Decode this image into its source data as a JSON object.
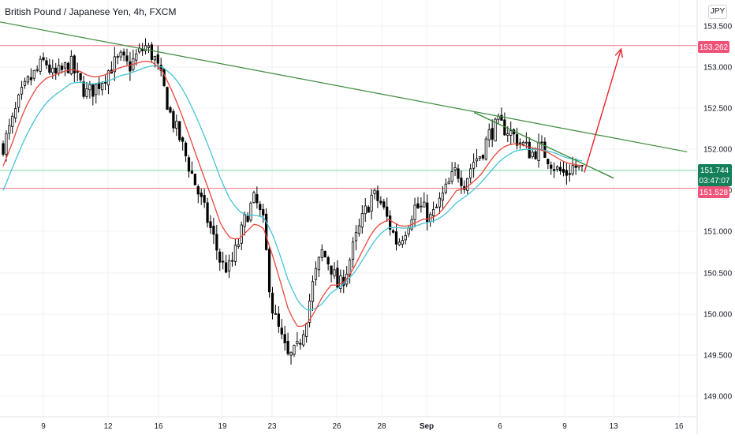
{
  "header": {
    "symbol_title": "British Pound / Japanese Yen, 4h, FXCM",
    "currency_button": "JPY"
  },
  "colors": {
    "up_candle_fill": "#ffffff",
    "down_candle_fill": "#000000",
    "candle_outline": "#000000",
    "ema_fast": "#e8473d",
    "ema_slow": "#45c3d4",
    "trendline": "#3c8c3c",
    "resistance_line": "#f07a8c",
    "current_price_line": "#7ed6a8",
    "projection_arrow": "#e8242b",
    "label_pink": "#f0537a",
    "label_green": "#13805a",
    "grid": "#eef0f3",
    "axis_text": "#131722"
  },
  "price_labels": {
    "resistance": "153.262",
    "current": "151.744",
    "countdown": "03:47:07",
    "support": "151.528"
  },
  "chart_data": {
    "type": "candlestick",
    "title": "British Pound / Japanese Yen, 4h, FXCM",
    "y_axis": {
      "ticks": [
        "153.500",
        "153.000",
        "152.500",
        "152.000",
        "151.500",
        "151.000",
        "150.500",
        "150.000",
        "149.500",
        "149.000"
      ],
      "range": [
        148.95,
        153.7
      ]
    },
    "x_axis": {
      "ticks": [
        "9",
        "12",
        "16",
        "19",
        "23",
        "26",
        "28",
        "Sep",
        "6",
        "9",
        "13",
        "16"
      ]
    },
    "close_path": [
      152.05,
      152.3,
      152.62,
      152.82,
      152.95,
      153.08,
      152.88,
      152.95,
      153.05,
      152.82,
      152.68,
      152.75,
      152.88,
      153.02,
      153.1,
      153.0,
      153.15,
      153.25,
      153.12,
      152.8,
      152.4,
      152.15,
      151.85,
      151.55,
      151.25,
      150.95,
      150.6,
      150.55,
      150.85,
      151.2,
      151.4,
      151.1,
      150.1,
      149.75,
      149.45,
      149.55,
      149.9,
      150.4,
      150.75,
      150.6,
      150.3,
      150.55,
      150.9,
      151.2,
      151.45,
      151.35,
      151.1,
      150.85,
      151.05,
      151.3,
      151.28,
      151.15,
      151.35,
      151.55,
      151.75,
      151.6,
      151.85,
      151.95,
      152.2,
      152.3,
      152.25,
      152.15,
      152.05,
      151.95,
      152.02,
      151.9,
      151.75,
      151.7,
      151.8,
      151.74
    ],
    "ema_fast": [
      151.8,
      152.05,
      152.35,
      152.58,
      152.75,
      152.86,
      152.9,
      152.94,
      152.97,
      152.96,
      152.9,
      152.88,
      152.9,
      152.95,
      153.0,
      153.02,
      153.05,
      153.08,
      153.05,
      152.95,
      152.74,
      152.5,
      152.22,
      151.93,
      151.65,
      151.37,
      151.07,
      150.93,
      150.9,
      151.0,
      151.1,
      151.05,
      150.75,
      150.41,
      150.05,
      149.85,
      149.85,
      150.0,
      150.2,
      150.35,
      150.35,
      150.42,
      150.6,
      150.8,
      151.0,
      151.1,
      151.15,
      151.08,
      151.06,
      151.1,
      151.15,
      151.16,
      151.22,
      151.35,
      151.5,
      151.52,
      151.6,
      151.7,
      151.85,
      151.98,
      152.05,
      152.07,
      152.05,
      152.02,
      152.0,
      151.96,
      151.9,
      151.84,
      151.82,
      151.8
    ],
    "ema_slow": [
      151.5,
      151.75,
      152.0,
      152.22,
      152.4,
      152.55,
      152.65,
      152.72,
      152.8,
      152.82,
      152.8,
      152.8,
      152.82,
      152.85,
      152.9,
      152.92,
      152.96,
      153.0,
      153.02,
      153.0,
      152.92,
      152.8,
      152.62,
      152.4,
      152.16,
      151.9,
      151.62,
      151.4,
      151.26,
      151.2,
      151.2,
      151.18,
      151.0,
      150.72,
      150.4,
      150.18,
      150.05,
      150.05,
      150.12,
      150.25,
      150.32,
      150.4,
      150.52,
      150.68,
      150.85,
      150.98,
      151.05,
      151.05,
      151.04,
      151.06,
      151.1,
      151.12,
      151.16,
      151.24,
      151.35,
      151.42,
      151.5,
      151.6,
      151.72,
      151.84,
      151.92,
      151.98,
      152.0,
      152.0,
      152.0,
      151.98,
      151.95,
      151.9,
      151.88,
      151.86
    ],
    "levels": {
      "resistance": 153.262,
      "current": 151.744,
      "support": 151.528
    },
    "long_trendline": {
      "x": [
        0.0,
        0.935
      ],
      "y": [
        153.55,
        151.97
      ]
    },
    "short_trendline": {
      "x": [
        0.645,
        0.835
      ],
      "y": [
        152.45,
        151.65
      ]
    },
    "projection_arrow": {
      "x": [
        0.795,
        0.845
      ],
      "y": [
        151.72,
        153.22
      ]
    },
    "grid": true
  }
}
